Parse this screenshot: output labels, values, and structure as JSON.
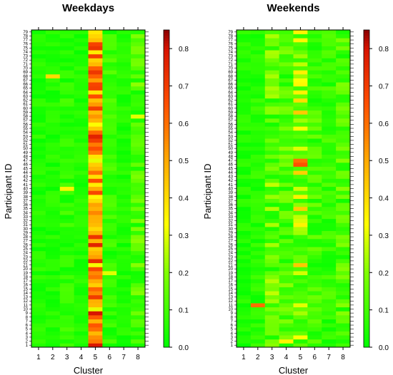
{
  "chart_data": [
    {
      "type": "heatmap",
      "title": "Weekdays",
      "xlabel": "Cluster",
      "ylabel": "Participant ID",
      "x_categories": [
        "1",
        "2",
        "3",
        "4",
        "5",
        "6",
        "7",
        "8"
      ],
      "y_range": [
        1,
        79
      ],
      "colorbar": {
        "min": 0.0,
        "max": 0.85,
        "ticks": [
          "0.0",
          "0.1",
          "0.2",
          "0.3",
          "0.4",
          "0.5",
          "0.6",
          "0.7",
          "0.8"
        ]
      },
      "cluster_profile_approx": [
        0.05,
        0.05,
        0.07,
        0.05,
        0.55,
        0.08,
        0.05,
        0.12
      ],
      "notable_values": [
        {
          "id": 68,
          "cluster": 2,
          "value": 0.4
        },
        {
          "id": 40,
          "cluster": 3,
          "value": 0.35
        },
        {
          "id": 19,
          "cluster": 6,
          "value": 0.3
        },
        {
          "id": 58,
          "cluster": 8,
          "value": 0.3
        }
      ]
    },
    {
      "type": "heatmap",
      "title": "Weekends",
      "xlabel": "Cluster",
      "ylabel": "Participant ID",
      "x_categories": [
        "1",
        "2",
        "3",
        "4",
        "5",
        "6",
        "7",
        "8"
      ],
      "y_range": [
        1,
        79
      ],
      "colorbar": {
        "min": 0.0,
        "max": 0.85,
        "ticks": [
          "0.0",
          "0.1",
          "0.2",
          "0.3",
          "0.4",
          "0.5",
          "0.6",
          "0.7",
          "0.8"
        ]
      },
      "cluster_profile_approx": [
        0.05,
        0.06,
        0.15,
        0.12,
        0.25,
        0.1,
        0.08,
        0.12
      ],
      "notable_values": [
        {
          "id": 11,
          "cluster": 2,
          "value": 0.6
        },
        {
          "id": 46,
          "cluster": 5,
          "value": 0.65
        },
        {
          "id": 47,
          "cluster": 5,
          "value": 0.6
        },
        {
          "id": 79,
          "cluster": 5,
          "value": 0.35
        },
        {
          "id": 2,
          "cluster": 4,
          "value": 0.35
        }
      ]
    }
  ]
}
